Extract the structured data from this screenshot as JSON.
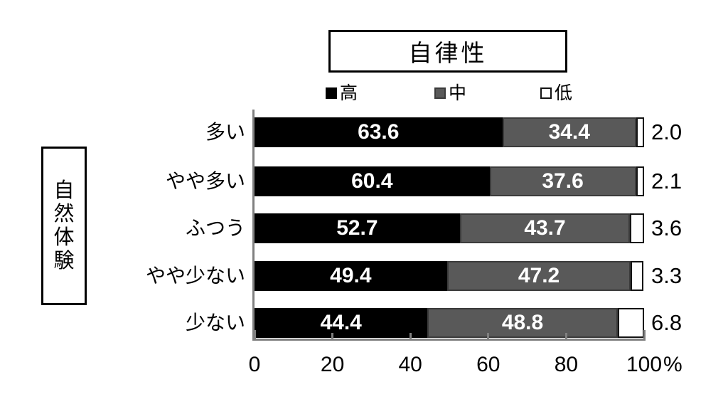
{
  "title": "自律性",
  "side_label": "自然体験",
  "unit_label": "%",
  "colors": {
    "high": "#000000",
    "mid": "#595959",
    "mid_border": "#3b3b3b",
    "low": "#ffffff",
    "low_border": "#141414",
    "axis": "#808080",
    "inside_text": "#ffffff",
    "outside_text": "#000000"
  },
  "legend": [
    {
      "label": "高",
      "color": "#000000",
      "border": "#000000"
    },
    {
      "label": "中",
      "color": "#595959",
      "border": "#3b3b3b"
    },
    {
      "label": "低",
      "color": "#ffffff",
      "border": "#141414"
    }
  ],
  "chart_data": {
    "type": "bar",
    "orientation": "horizontal",
    "stacked": true,
    "title": "自律性",
    "axis_title": "自然体験",
    "categories": [
      "多い",
      "やや多い",
      "ふつう",
      "やや少ない",
      "少ない"
    ],
    "series": [
      {
        "name": "高",
        "color": "#000000",
        "values": [
          63.6,
          60.4,
          52.7,
          49.4,
          44.4
        ],
        "labels": [
          "63.6",
          "60.4",
          "52.7",
          "49.4",
          "44.4"
        ],
        "label_inside": true
      },
      {
        "name": "中",
        "color": "#595959",
        "values": [
          34.4,
          37.6,
          43.7,
          47.2,
          48.8
        ],
        "labels": [
          "34.4",
          "37.6",
          "43.7",
          "47.2",
          "48.8"
        ],
        "label_inside": true
      },
      {
        "name": "低",
        "color": "#ffffff",
        "values": [
          2.0,
          2.1,
          3.6,
          3.3,
          6.8
        ],
        "labels": [
          "2.0",
          "2.1",
          "3.6",
          "3.3",
          "6.8"
        ],
        "label_inside": false
      }
    ],
    "x_ticks": [
      "0",
      "20",
      "40",
      "60",
      "80",
      "100"
    ],
    "xlim": [
      0,
      100
    ],
    "unit": "%",
    "grid": false,
    "legend_position": "top"
  }
}
